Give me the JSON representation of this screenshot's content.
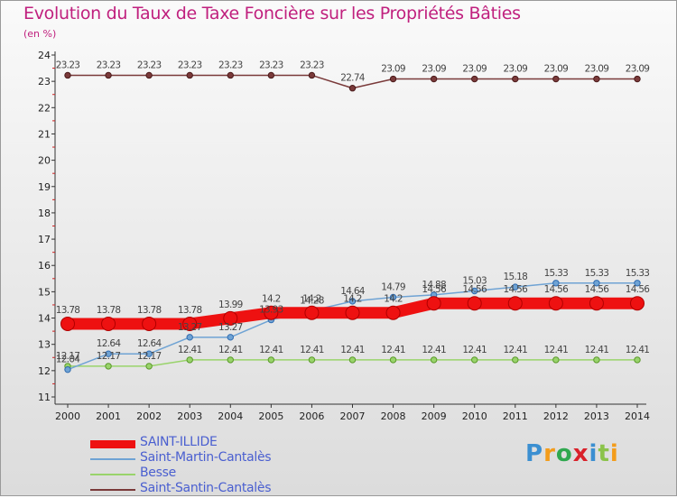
{
  "title": "Evolution du Taux de Taxe Foncière sur les Propriétés Bâties",
  "unit": "(en %)",
  "logo": {
    "letters": [
      "P",
      "r",
      "o",
      "x",
      "i",
      "t",
      "i"
    ],
    "colors": [
      "#3b8fd1",
      "#f39c1b",
      "#2fa84f",
      "#d9212a",
      "#3b8fd1",
      "#8bc34a",
      "#f39c1b"
    ]
  },
  "chart_data": {
    "type": "line",
    "x": [
      "2000",
      "2001",
      "2002",
      "2003",
      "2004",
      "2005",
      "2006",
      "2007",
      "2008",
      "2009",
      "2010",
      "2011",
      "2012",
      "2013",
      "2014"
    ],
    "ylim": [
      11,
      24
    ],
    "yticks": [
      "11",
      "12",
      "13",
      "14",
      "15",
      "16",
      "17",
      "18",
      "19",
      "20",
      "21",
      "22",
      "23",
      "24"
    ],
    "grid": false,
    "legend_position": "bottom-left",
    "series": [
      {
        "name": "SAINT-ILLIDE",
        "color": "#ee1111",
        "values": [
          13.78,
          13.78,
          13.78,
          13.78,
          13.99,
          14.2,
          14.2,
          14.2,
          14.2,
          14.56,
          14.56,
          14.56,
          14.56,
          14.56,
          14.56
        ],
        "labels": [
          "13.78",
          "13.78",
          "13.78",
          "13.78",
          "13.99",
          "14.2",
          "14.2",
          "14.2",
          "14.2",
          "14.56",
          "14.56",
          "14.56",
          "14.56",
          "14.56",
          "14.56"
        ]
      },
      {
        "name": "Saint-Martin-Cantalès",
        "color": "#6fa3d4",
        "values": [
          12.04,
          12.64,
          12.64,
          13.27,
          13.27,
          13.93,
          14.28,
          14.64,
          14.79,
          14.88,
          15.03,
          15.18,
          15.33,
          15.33,
          15.33
        ],
        "labels": [
          "12.04",
          "12.64",
          "12.64",
          "13.27",
          "13.27",
          "13.93",
          "14.28",
          "14.64",
          "14.79",
          "14.88",
          "15.03",
          "15.18",
          "15.33",
          "15.33",
          "15.33"
        ]
      },
      {
        "name": "Besse",
        "color": "#99d36b",
        "values": [
          12.17,
          12.17,
          12.17,
          12.41,
          12.41,
          12.41,
          12.41,
          12.41,
          12.41,
          12.41,
          12.41,
          12.41,
          12.41,
          12.41,
          12.41
        ],
        "labels": [
          "12.17",
          "12.17",
          "12.17",
          "12.41",
          "12.41",
          "12.41",
          "12.41",
          "12.41",
          "12.41",
          "12.41",
          "12.41",
          "12.41",
          "12.41",
          "12.41",
          "12.41"
        ]
      },
      {
        "name": "Saint-Santin-Cantalès",
        "color": "#7a3a3a",
        "values": [
          23.23,
          23.23,
          23.23,
          23.23,
          23.23,
          23.23,
          23.23,
          22.74,
          23.09,
          23.09,
          23.09,
          23.09,
          23.09,
          23.09,
          23.09
        ],
        "labels": [
          "23.23",
          "23.23",
          "23.23",
          "23.23",
          "23.23",
          "23.23",
          "23.23",
          "22.74",
          "23.09",
          "23.09",
          "23.09",
          "23.09",
          "23.09",
          "23.09",
          "23.09"
        ]
      }
    ]
  }
}
